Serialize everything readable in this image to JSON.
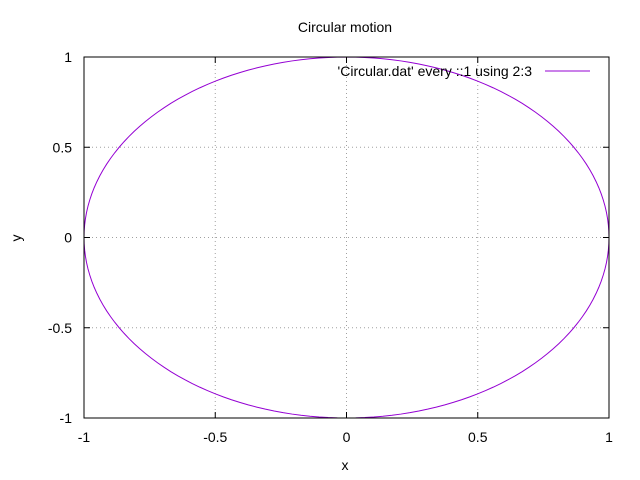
{
  "chart_data": {
    "type": "line",
    "title": "Circular motion",
    "xlabel": "x",
    "ylabel": "y",
    "xlim": [
      -1,
      1
    ],
    "ylim": [
      -1,
      1
    ],
    "xticks": [
      -1,
      -0.5,
      0,
      0.5,
      1
    ],
    "yticks": [
      -1,
      -0.5,
      0,
      0.5,
      1
    ],
    "xtick_labels": [
      "-1",
      "-0.5",
      "0",
      "0.5",
      "1"
    ],
    "ytick_labels": [
      "-1",
      "-0.5",
      "0",
      "0.5",
      "1"
    ],
    "grid": true,
    "legend_position": "top-right",
    "series": [
      {
        "name": "'Circular.dat' every ::1 using 2:3",
        "color": "#9400d3",
        "shape": "unit circle",
        "x": [
          1.0,
          0.866,
          0.5,
          0.0,
          -0.5,
          -0.866,
          -1.0,
          -0.866,
          -0.5,
          0.0,
          0.5,
          0.866,
          1.0
        ],
        "y": [
          0.0,
          0.5,
          0.866,
          1.0,
          0.866,
          0.5,
          0.0,
          -0.5,
          -0.866,
          -1.0,
          -0.866,
          -0.5,
          0.0
        ]
      }
    ]
  }
}
